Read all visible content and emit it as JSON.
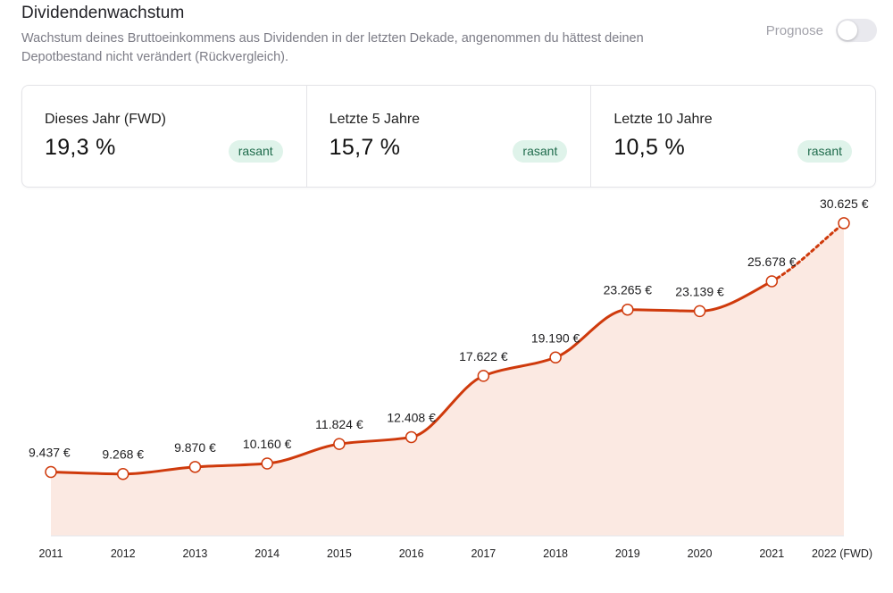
{
  "header": {
    "title": "Dividendenwachstum",
    "subtitle": "Wachstum deines Bruttoeinkommens aus Dividenden in der letzten Dekade, angenommen du hättest deinen Depotbestand nicht verändert (Rückvergleich)."
  },
  "toggle": {
    "label": "Prognose",
    "on": false
  },
  "cards": [
    {
      "label": "Dieses Jahr (FWD)",
      "value": "19,3 %",
      "badge": "rasant"
    },
    {
      "label": "Letzte 5 Jahre",
      "value": "15,7 %",
      "badge": "rasant"
    },
    {
      "label": "Letzte 10 Jahre",
      "value": "10,5 %",
      "badge": "rasant"
    }
  ],
  "colors": {
    "line": "#cf3a0c",
    "fill": "#fbe9e2",
    "badge_bg": "#dff3ea",
    "badge_text": "#1f6b4c"
  },
  "chart_data": {
    "type": "line",
    "title": "",
    "xlabel": "",
    "ylabel": "",
    "categories": [
      "2011",
      "2012",
      "2013",
      "2014",
      "2015",
      "2016",
      "2017",
      "2018",
      "2019",
      "2020",
      "2021",
      "2022 (FWD)"
    ],
    "values": [
      9437,
      9268,
      9870,
      10160,
      11824,
      12408,
      17622,
      19190,
      23265,
      23139,
      25678,
      30625
    ],
    "labels": [
      "9.437 €",
      "9.268 €",
      "9.870 €",
      "10.160 €",
      "11.824 €",
      "12.408 €",
      "17.622 €",
      "19.190 €",
      "23.265 €",
      "23.139 €",
      "25.678 €",
      "30.625 €"
    ],
    "forecast_from_index": 10,
    "ylim": [
      4000,
      31000
    ],
    "grid": false,
    "area_fill": true
  }
}
